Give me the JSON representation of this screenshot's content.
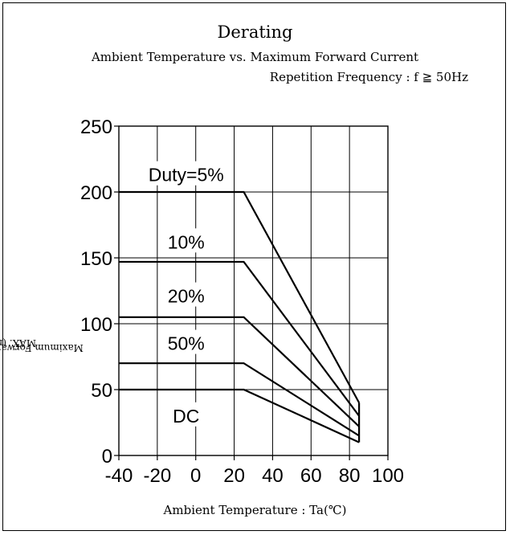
{
  "chart_data": {
    "type": "line",
    "title": "Derating",
    "subtitle": "Ambient Temperature vs. Maximum Forward Current",
    "condition": "Repetition Frequency : f ≧ 50Hz",
    "xlabel": "Ambient Temperature : Ta(℃)",
    "ylabel_main": "Maximum Forward Current : I",
    "ylabel_sub": "F",
    "ylabel_tail": " MAX. (mA)",
    "xlim": [
      -40,
      100
    ],
    "ylim": [
      0,
      250
    ],
    "x_ticks": [
      -40,
      -20,
      0,
      20,
      40,
      60,
      80,
      100
    ],
    "y_ticks": [
      0,
      50,
      100,
      150,
      200,
      250
    ],
    "x_tick_labels": [
      "-40",
      "-20",
      "0",
      "20",
      "40",
      "60",
      "80",
      "100"
    ],
    "y_tick_labels": [
      "0",
      "50",
      "100",
      "150",
      "200",
      "250"
    ],
    "grid": true,
    "series": [
      {
        "name": "Duty=5%",
        "x": [
          -40,
          25,
          85
        ],
        "y": [
          200,
          200,
          40
        ]
      },
      {
        "name": "10%",
        "x": [
          -40,
          25,
          85
        ],
        "y": [
          147,
          147,
          30
        ]
      },
      {
        "name": "20%",
        "x": [
          -40,
          25,
          85
        ],
        "y": [
          105,
          105,
          22
        ]
      },
      {
        "name": "50%",
        "x": [
          -40,
          25,
          85
        ],
        "y": [
          70,
          70,
          15
        ]
      },
      {
        "name": "DC",
        "x": [
          -40,
          25,
          85
        ],
        "y": [
          50,
          50,
          10
        ]
      }
    ],
    "end_marker_x": 85,
    "labels": [
      {
        "text": "Duty=5%",
        "x": -5,
        "y": 213
      },
      {
        "text": "10%",
        "x": -5,
        "y": 162
      },
      {
        "text": "20%",
        "x": -5,
        "y": 121
      },
      {
        "text": "50%",
        "x": -5,
        "y": 85
      },
      {
        "text": "DC",
        "x": -5,
        "y": 30
      }
    ]
  }
}
